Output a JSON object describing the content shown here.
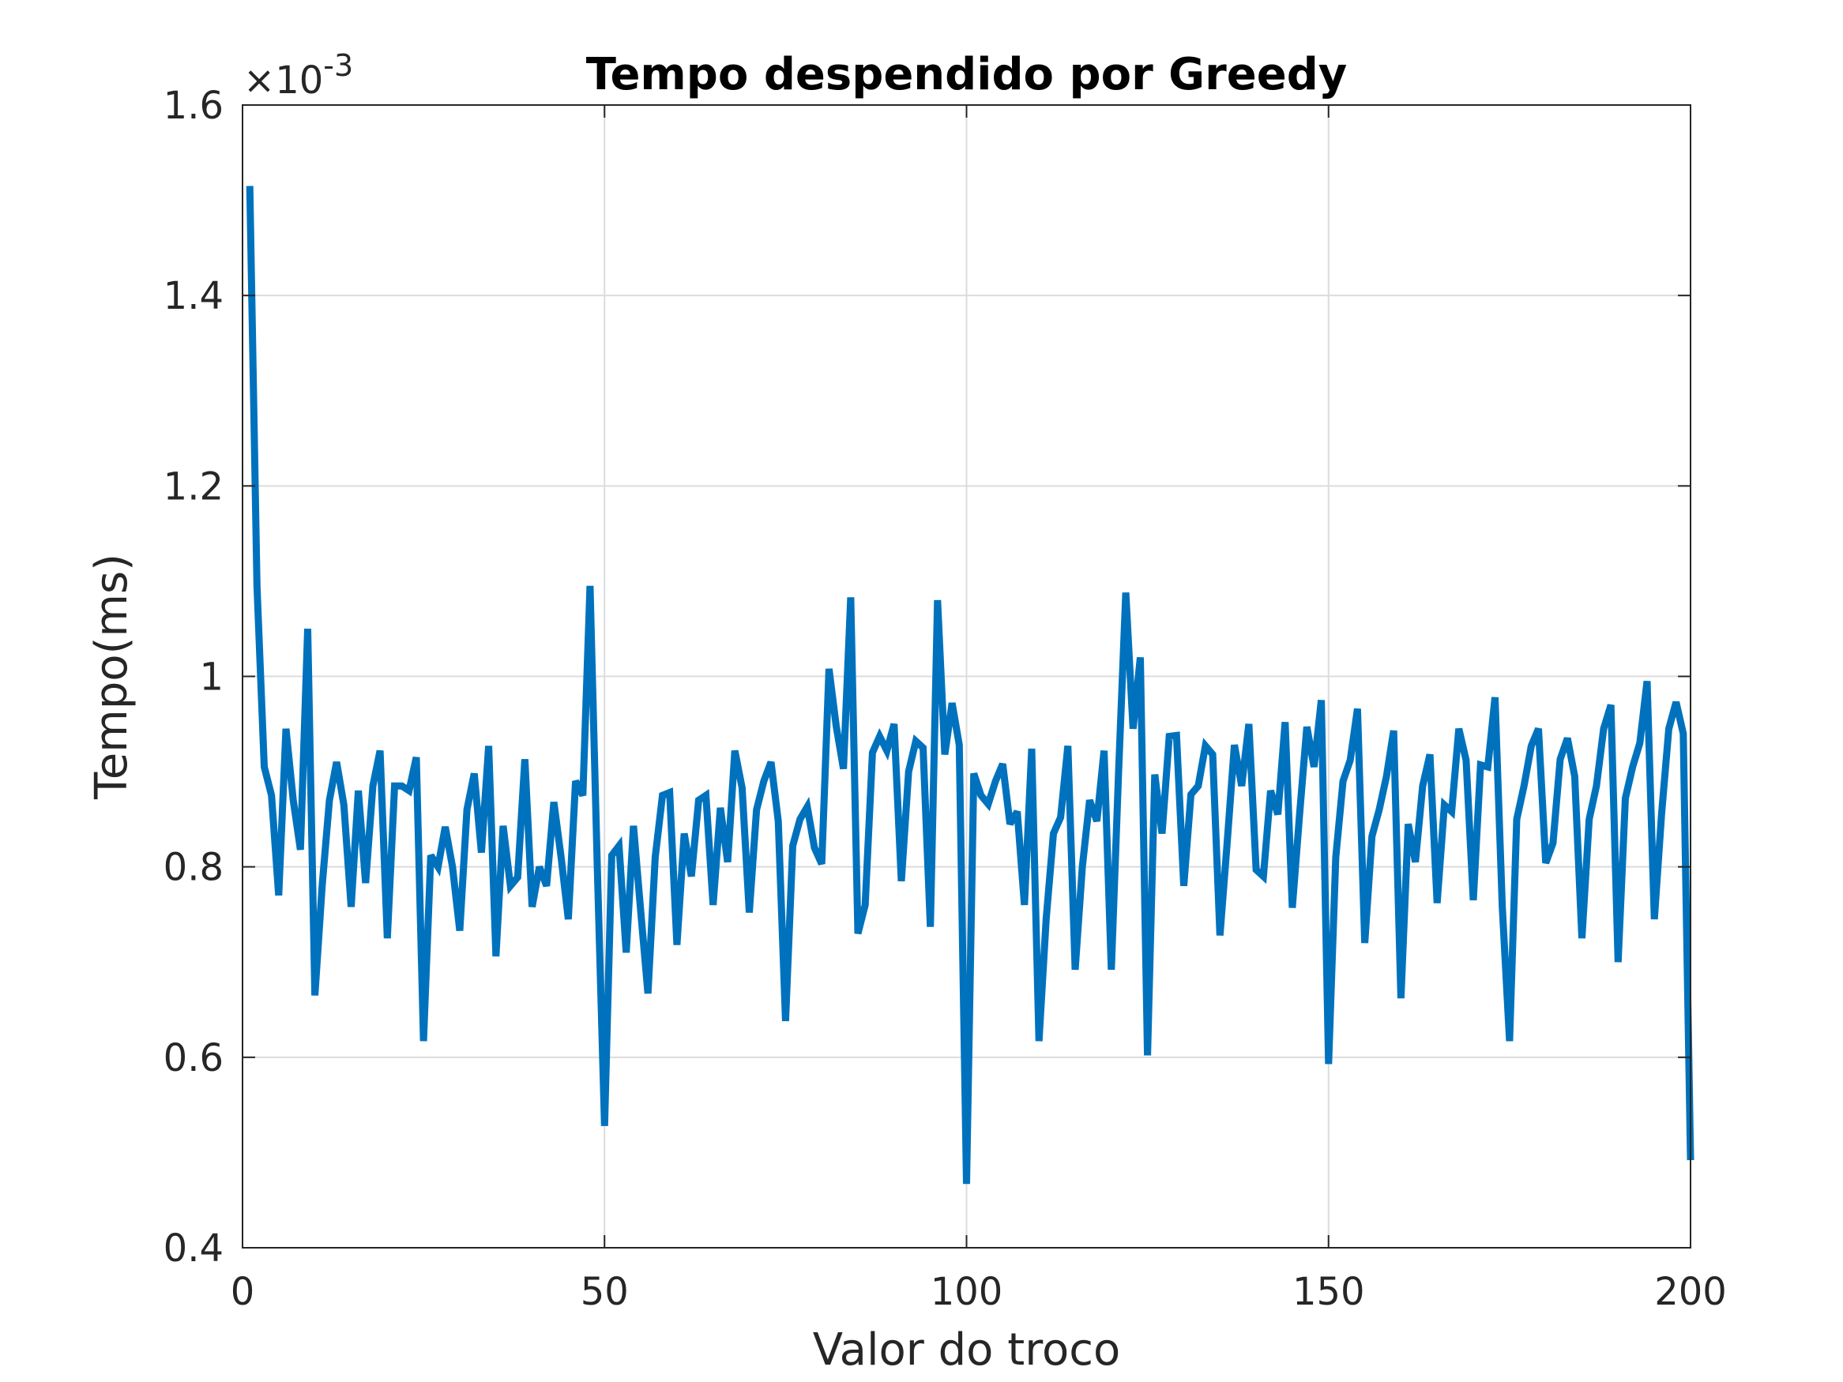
{
  "chart_data": {
    "type": "line",
    "title": "Tempo despendido por Greedy",
    "xlabel": "Valor do troco",
    "ylabel": "Tempo(ms)",
    "y_exponent_label": "×10",
    "y_exponent_power": "-3",
    "xlim": [
      0,
      200
    ],
    "ylim": [
      0.4,
      1.6
    ],
    "y_scale_factor": 0.001,
    "grid": true,
    "line_color": "#0072BD",
    "x_ticks": [
      0,
      50,
      100,
      150,
      200
    ],
    "x_tick_labels": [
      "0",
      "50",
      "100",
      "150",
      "200"
    ],
    "y_ticks": [
      0.4,
      0.6,
      0.8,
      1.0,
      1.2,
      1.4,
      1.6
    ],
    "y_tick_labels": [
      "0.4",
      "0.6",
      "0.8",
      "1",
      "1.2",
      "1.4",
      "1.6"
    ],
    "series": [
      {
        "x": [
          1,
          2,
          3,
          4,
          5,
          6,
          7,
          8,
          9,
          10,
          11,
          12,
          13,
          14,
          15,
          16,
          17,
          18,
          19,
          20,
          21,
          22,
          23,
          24,
          25,
          26,
          27,
          28,
          29,
          30,
          31,
          32,
          33,
          34,
          35,
          36,
          37,
          38,
          39,
          40,
          41,
          42,
          43,
          44,
          45,
          46,
          47,
          48,
          49,
          50,
          51,
          52,
          53,
          54,
          55,
          56,
          57,
          58,
          59,
          60,
          61,
          62,
          63,
          64,
          65,
          66,
          67,
          68,
          69,
          70,
          71,
          72,
          73,
          74,
          75,
          76,
          77,
          78,
          79,
          80,
          81,
          82,
          83,
          84,
          85,
          86,
          87,
          88,
          89,
          90,
          91,
          92,
          93,
          94,
          95,
          96,
          97,
          98,
          99,
          100,
          101,
          102,
          103,
          104,
          105,
          106,
          107,
          108,
          109,
          110,
          111,
          112,
          113,
          114,
          115,
          116,
          117,
          118,
          119,
          120,
          121,
          122,
          123,
          124,
          125,
          126,
          127,
          128,
          129,
          130,
          131,
          132,
          133,
          134,
          135,
          136,
          137,
          138,
          139,
          140,
          141,
          142,
          143,
          144,
          145,
          146,
          147,
          148,
          149,
          150,
          151,
          152,
          153,
          154,
          155,
          156,
          157,
          158,
          159,
          160,
          161,
          162,
          163,
          164,
          165,
          166,
          167,
          168,
          169,
          170,
          171,
          172,
          173,
          174,
          175,
          176,
          177,
          178,
          179,
          180,
          181,
          182,
          183,
          184,
          185,
          186,
          187,
          188,
          189,
          190,
          191,
          192,
          193,
          194,
          195,
          196,
          197,
          198,
          199,
          200
        ],
        "y": [
          1.515,
          1.095,
          0.905,
          0.875,
          0.77,
          0.945,
          0.87,
          0.818,
          1.05,
          0.665,
          0.78,
          0.87,
          0.91,
          0.865,
          0.758,
          0.88,
          0.783,
          0.885,
          0.922,
          0.725,
          0.885,
          0.885,
          0.88,
          0.915,
          0.617,
          0.812,
          0.8,
          0.842,
          0.8,
          0.733,
          0.86,
          0.898,
          0.815,
          0.927,
          0.706,
          0.843,
          0.78,
          0.789,
          0.913,
          0.758,
          0.8,
          0.78,
          0.868,
          0.81,
          0.745,
          0.89,
          0.875,
          1.095,
          0.8,
          0.528,
          0.812,
          0.822,
          0.71,
          0.843,
          0.753,
          0.667,
          0.81,
          0.875,
          0.878,
          0.718,
          0.835,
          0.79,
          0.87,
          0.875,
          0.76,
          0.862,
          0.805,
          0.922,
          0.883,
          0.752,
          0.86,
          0.89,
          0.91,
          0.848,
          0.638,
          0.822,
          0.85,
          0.863,
          0.82,
          0.803,
          1.008,
          0.948,
          0.903,
          1.083,
          0.73,
          0.76,
          0.92,
          0.937,
          0.922,
          0.95,
          0.785,
          0.9,
          0.932,
          0.925,
          0.737,
          1.08,
          0.918,
          0.972,
          0.928,
          0.467,
          0.898,
          0.875,
          0.866,
          0.89,
          0.908,
          0.845,
          0.858,
          0.76,
          0.924,
          0.617,
          0.745,
          0.835,
          0.852,
          0.927,
          0.692,
          0.8,
          0.87,
          0.848,
          0.922,
          0.692,
          0.9,
          1.088,
          0.945,
          1.02,
          0.602,
          0.897,
          0.835,
          0.937,
          0.938,
          0.78,
          0.876,
          0.885,
          0.927,
          0.918,
          0.728,
          0.825,
          0.928,
          0.885,
          0.95,
          0.797,
          0.79,
          0.88,
          0.855,
          0.952,
          0.757,
          0.855,
          0.947,
          0.905,
          0.975,
          0.593,
          0.81,
          0.89,
          0.912,
          0.966,
          0.72,
          0.832,
          0.86,
          0.895,
          0.943,
          0.662,
          0.845,
          0.805,
          0.885,
          0.918,
          0.762,
          0.865,
          0.858,
          0.945,
          0.912,
          0.765,
          0.907,
          0.905,
          0.978,
          0.758,
          0.617,
          0.85,
          0.885,
          0.927,
          0.945,
          0.804,
          0.825,
          0.913,
          0.935,
          0.895,
          0.725,
          0.85,
          0.885,
          0.945,
          0.97,
          0.7,
          0.872,
          0.905,
          0.93,
          0.995,
          0.745,
          0.855,
          0.945,
          0.973,
          0.94,
          0.492
        ]
      }
    ]
  }
}
